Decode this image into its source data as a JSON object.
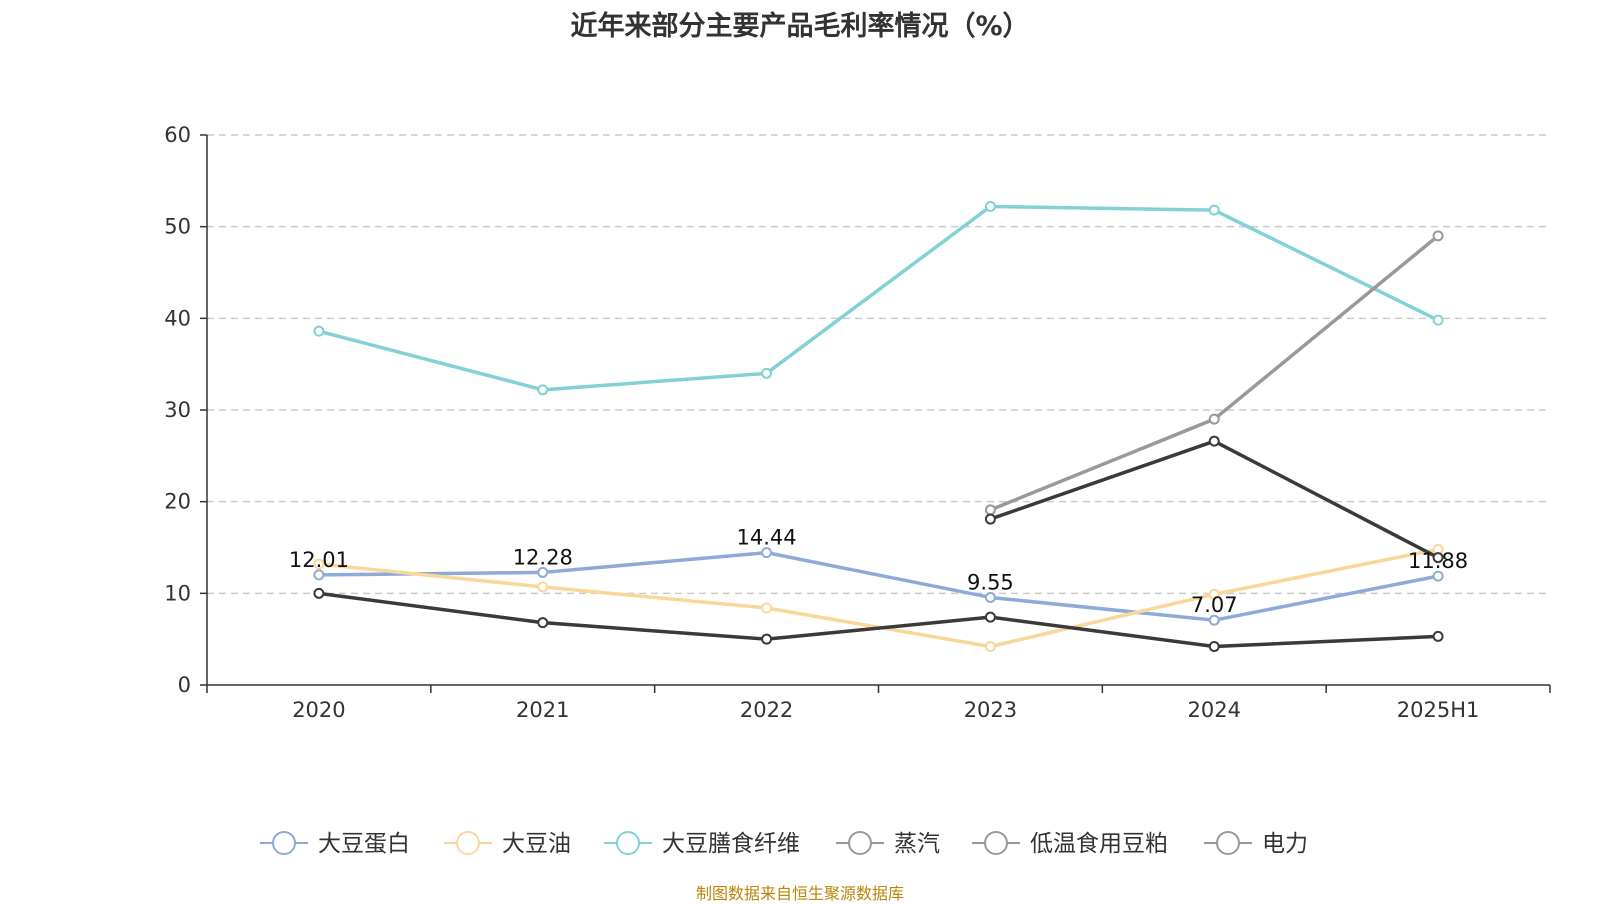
{
  "chart_data": {
    "type": "line",
    "title": "近年来部分主要产品毛利率情况（%）",
    "xlabel": "",
    "ylabel": "",
    "categories": [
      "2020",
      "2021",
      "2022",
      "2023",
      "2024",
      "2025H1"
    ],
    "ylim": [
      0,
      60
    ],
    "yticks": [
      0,
      10,
      20,
      30,
      40,
      50,
      60
    ],
    "grid": true,
    "legend_position": "bottom",
    "series": [
      {
        "name": "大豆蛋白",
        "color": "#8eaad9",
        "values": [
          12.01,
          12.28,
          14.44,
          9.55,
          7.07,
          11.88
        ],
        "labels": [
          "12.01",
          "12.28",
          "14.44",
          "9.55",
          "7.07",
          "11.88"
        ]
      },
      {
        "name": "大豆油",
        "color": "#f9d79b",
        "values": [
          13.2,
          10.7,
          8.4,
          4.2,
          9.9,
          14.8
        ]
      },
      {
        "name": "大豆膳食纤维",
        "color": "#82d1d6",
        "values": [
          38.6,
          32.2,
          34.0,
          52.2,
          51.8,
          39.8
        ]
      },
      {
        "name": "蒸汽",
        "color": "#999999",
        "values": [
          null,
          null,
          null,
          19.1,
          29.0,
          49.0
        ]
      },
      {
        "name": "低温食用豆粕",
        "color": "#3a3a3a",
        "values": [
          null,
          null,
          null,
          18.1,
          26.6,
          13.9
        ]
      },
      {
        "name": "电力",
        "color": "#3a3a3a",
        "values": [
          10.0,
          6.8,
          5.0,
          7.4,
          4.2,
          5.3
        ]
      }
    ],
    "legend_marker_color": "#999999"
  },
  "source_note": "制图数据来自恒生聚源数据库"
}
